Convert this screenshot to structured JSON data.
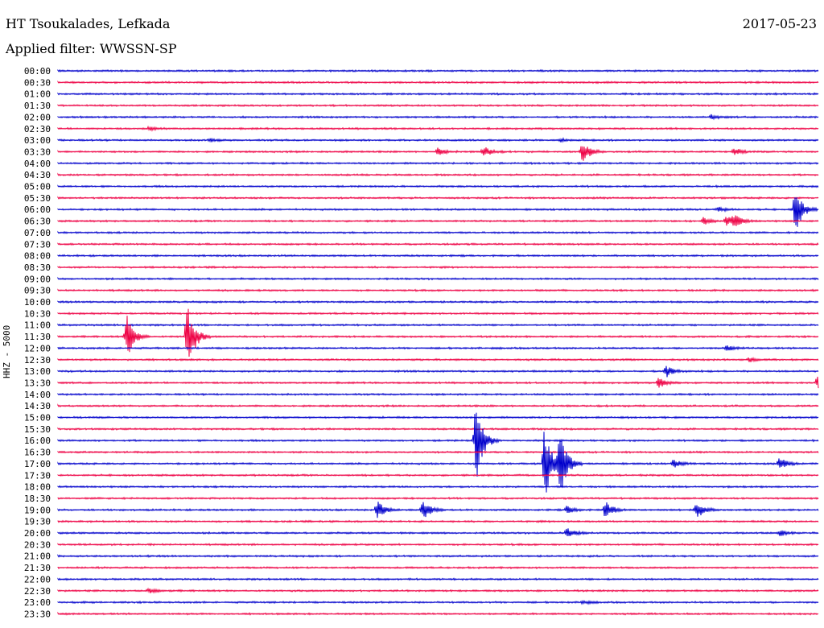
{
  "header": {
    "station": "HT Tsoukalades, Lefkada",
    "date": "2017-05-23",
    "filter": "Applied filter: WWSSN-SP",
    "channel_label": "HHZ - 5000"
  },
  "colors": {
    "even_trace": "#0000cc",
    "odd_trace": "#ee0044"
  },
  "chart_data": {
    "type": "line",
    "title": "HT Tsoukalades, Lefkada",
    "ylabel": "HHZ - 5000",
    "rows": [
      "00:00",
      "00:30",
      "01:00",
      "01:30",
      "02:00",
      "02:30",
      "03:00",
      "03:30",
      "04:00",
      "04:30",
      "05:00",
      "05:30",
      "06:00",
      "06:30",
      "07:00",
      "07:30",
      "08:00",
      "08:30",
      "09:00",
      "09:30",
      "10:00",
      "10:30",
      "11:00",
      "11:30",
      "12:00",
      "12:30",
      "13:00",
      "13:30",
      "14:00",
      "14:30",
      "15:00",
      "15:30",
      "16:00",
      "16:30",
      "17:00",
      "17:30",
      "18:00",
      "18:30",
      "19:00",
      "19:30",
      "20:00",
      "20:30",
      "21:00",
      "21:30",
      "22:00",
      "22:30",
      "23:00",
      "23:30"
    ],
    "events": [
      {
        "row": "03:00",
        "t": 0.2,
        "amp": 2
      },
      {
        "row": "03:00",
        "t": 0.66,
        "amp": 2
      },
      {
        "row": "03:30",
        "t": 0.5,
        "amp": 5
      },
      {
        "row": "03:30",
        "t": 0.56,
        "amp": 7
      },
      {
        "row": "03:30",
        "t": 0.69,
        "amp": 14
      },
      {
        "row": "03:30",
        "t": 0.89,
        "amp": 5
      },
      {
        "row": "02:30",
        "t": 0.12,
        "amp": 2
      },
      {
        "row": "02:00",
        "t": 0.86,
        "amp": 3
      },
      {
        "row": "06:00",
        "t": 0.97,
        "amp": 30
      },
      {
        "row": "06:00",
        "t": 0.87,
        "amp": 3
      },
      {
        "row": "06:30",
        "t": 0.85,
        "amp": 5
      },
      {
        "row": "06:30",
        "t": 0.88,
        "amp": 6
      },
      {
        "row": "06:30",
        "t": 0.89,
        "amp": 8
      },
      {
        "row": "11:30",
        "t": 0.09,
        "amp": 30
      },
      {
        "row": "11:30",
        "t": 0.17,
        "amp": 45
      },
      {
        "row": "12:00",
        "t": 0.88,
        "amp": 3
      },
      {
        "row": "12:30",
        "t": 0.91,
        "amp": 3
      },
      {
        "row": "13:00",
        "t": 0.8,
        "amp": 8
      },
      {
        "row": "13:30",
        "t": 0.79,
        "amp": 7
      },
      {
        "row": "13:30",
        "t": 1.0,
        "amp": 10
      },
      {
        "row": "16:00",
        "t": 0.55,
        "amp": 50
      },
      {
        "row": "17:00",
        "t": 0.64,
        "amp": 50
      },
      {
        "row": "17:00",
        "t": 0.66,
        "amp": 48
      },
      {
        "row": "17:00",
        "t": 0.81,
        "amp": 6
      },
      {
        "row": "17:00",
        "t": 0.95,
        "amp": 8
      },
      {
        "row": "19:00",
        "t": 0.67,
        "amp": 5
      },
      {
        "row": "19:00",
        "t": 0.42,
        "amp": 12
      },
      {
        "row": "19:00",
        "t": 0.48,
        "amp": 13
      },
      {
        "row": "19:00",
        "t": 0.72,
        "amp": 12
      },
      {
        "row": "19:00",
        "t": 0.84,
        "amp": 12
      },
      {
        "row": "20:00",
        "t": 0.67,
        "amp": 8
      },
      {
        "row": "20:00",
        "t": 0.95,
        "amp": 4
      },
      {
        "row": "22:30",
        "t": 0.12,
        "amp": 3
      },
      {
        "row": "23:00",
        "t": 0.69,
        "amp": 2
      }
    ]
  }
}
